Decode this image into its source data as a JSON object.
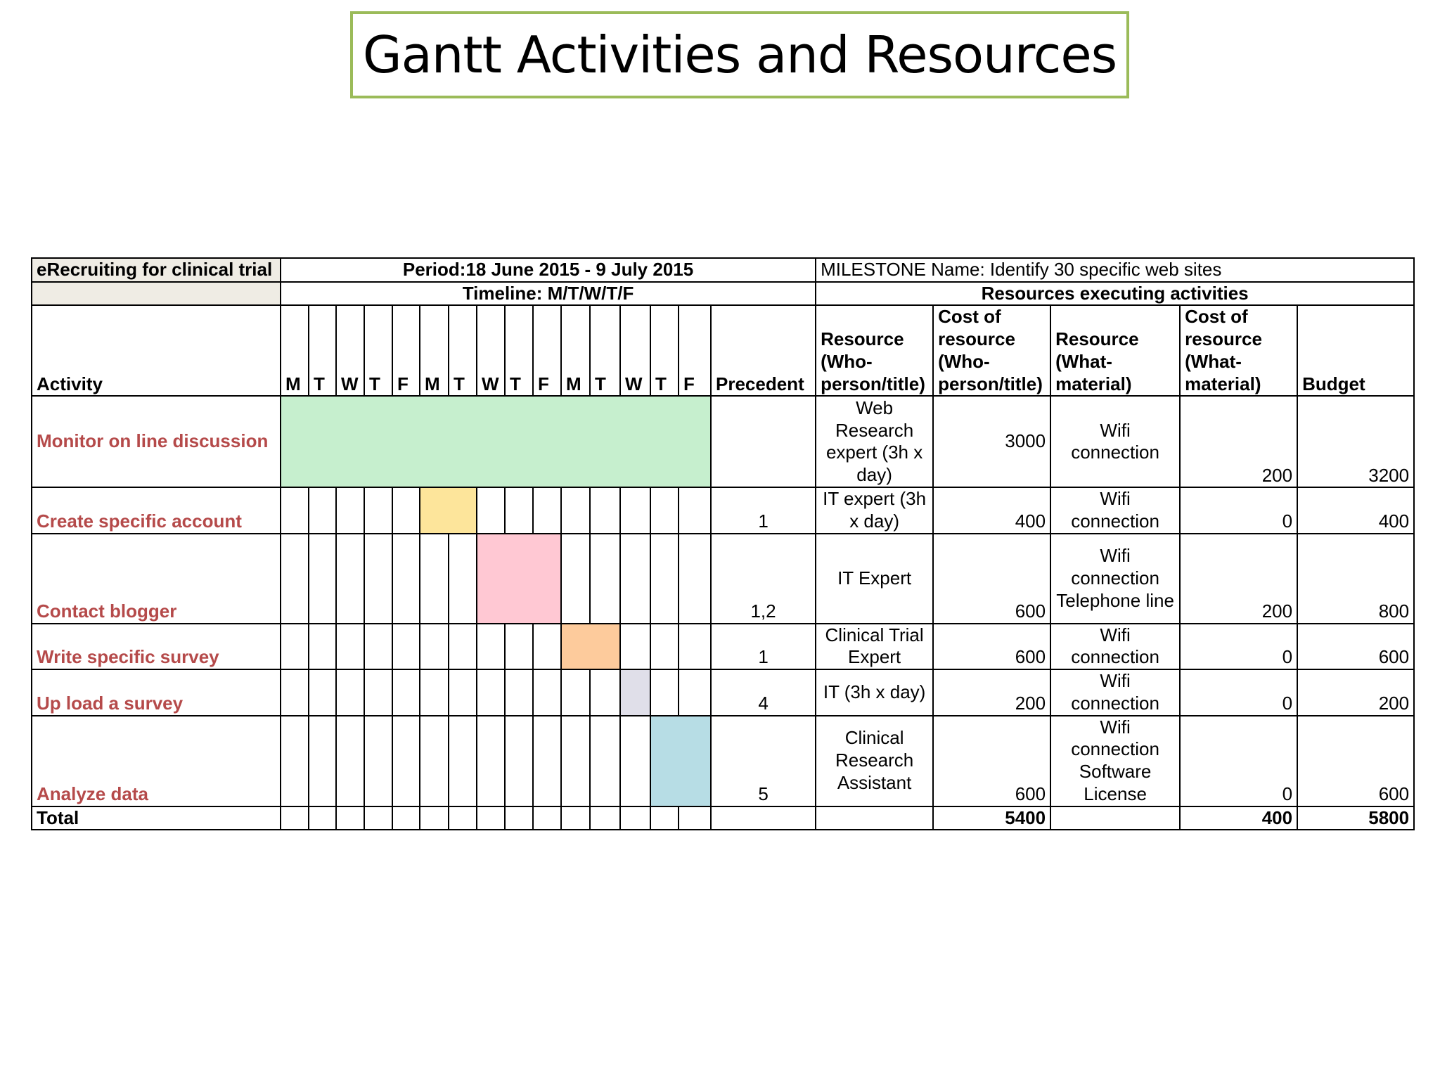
{
  "title": "Gantt Activities and Resources",
  "table": {
    "project": "eRecruiting for clinical trial",
    "period": "Period:18 June 2015 - 9 July 2015",
    "milestone": "MILESTONE  Name: Identify 30 specific web sites",
    "timeline": "Timeline: M/T/W/T/F",
    "resources_header": "Resources executing activities",
    "headers": {
      "activity": "Activity",
      "days": [
        "M",
        "T",
        "W",
        "T",
        "F",
        "M",
        "T",
        "W",
        "T",
        "F",
        "M",
        "T",
        "W",
        "T",
        "F"
      ],
      "precedent": "Precedent",
      "resource_who": "Resource (Who-person/title)",
      "cost_who": "Cost of resource (Who-person/title)",
      "resource_what": "Resource (What-material)",
      "cost_what": "Cost of resource (What-material)",
      "budget": "Budget"
    },
    "rows": [
      {
        "activity": "Monitor on line discussion",
        "bar_start_day": 1,
        "bar_end_day": 15,
        "bar_color": "#c6efce",
        "precedent": "",
        "resource_who": "Web Research expert (3h x day)",
        "cost_who": "3000",
        "resource_what": "Wifi connection",
        "cost_what": "200",
        "budget": "3200"
      },
      {
        "activity": "Create specific account",
        "bar_start_day": 6,
        "bar_end_day": 7,
        "bar_color": "#fde59b",
        "precedent": "1",
        "resource_who": "IT expert (3h x day)",
        "cost_who": "400",
        "resource_what": "Wifi connection",
        "cost_what": "0",
        "budget": "400"
      },
      {
        "activity": "Contact blogger",
        "bar_start_day": 8,
        "bar_end_day": 10,
        "bar_color": "#ffc8d3",
        "precedent": "1,2",
        "resource_who": "IT Expert",
        "cost_who": "600",
        "resource_what": "Wifi connection Telephone line",
        "cost_what": "200",
        "budget": "800"
      },
      {
        "activity": "Write specific survey",
        "bar_start_day": 11,
        "bar_end_day": 12,
        "bar_color": "#fdcb9c",
        "precedent": "1",
        "resource_who": "Clinical Trial Expert",
        "cost_who": "600",
        "resource_what": "Wifi connection",
        "cost_what": "0",
        "budget": "600"
      },
      {
        "activity": "Up load a survey",
        "bar_start_day": 13,
        "bar_end_day": 13,
        "bar_color": "#e0dfe9",
        "precedent": "4",
        "resource_who": "IT (3h x day)",
        "cost_who": "200",
        "resource_what": "Wifi connection",
        "cost_what": "0",
        "budget": "200"
      },
      {
        "activity": "Analyze data",
        "bar_start_day": 14,
        "bar_end_day": 15,
        "bar_color": "#b7dde5",
        "precedent": "5",
        "resource_who": "Clinical Research Assistant",
        "cost_who": "600",
        "resource_what": "Wifi connection Software License",
        "cost_what": "0",
        "budget": "600"
      }
    ],
    "total": {
      "label": "Total",
      "cost_who": "5400",
      "cost_what": "400",
      "budget": "5800"
    }
  }
}
